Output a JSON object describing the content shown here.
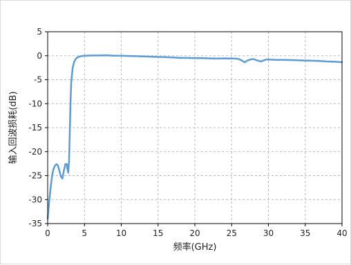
{
  "chart_data": {
    "type": "line",
    "title": "",
    "xlabel": "频率(GHz)",
    "ylabel": "输入回波损耗(dB)",
    "xlim": [
      0,
      40
    ],
    "ylim": [
      -35,
      5
    ],
    "xticks": [
      0,
      5,
      10,
      15,
      20,
      25,
      30,
      35,
      40
    ],
    "yticks": [
      5,
      0,
      -5,
      -10,
      -15,
      -20,
      -25,
      -30,
      -35
    ],
    "grid": true,
    "legend": "none",
    "colors": {
      "line": "#5b9bd5",
      "grid": "#b8b8b8",
      "axis": "#000000"
    },
    "series": [
      {
        "x": [
          0,
          0.2,
          0.4,
          0.6,
          0.8,
          1.0,
          1.2,
          1.4,
          1.6,
          1.8,
          2.0,
          2.2,
          2.4,
          2.6,
          2.7,
          2.8,
          2.9,
          3.0,
          3.1,
          3.2,
          3.4,
          3.6,
          3.8,
          4.0,
          4.2,
          4.5,
          5.0,
          6,
          7,
          8,
          9,
          10,
          11,
          12,
          13,
          14,
          15,
          16,
          17,
          18,
          19,
          20,
          21,
          22,
          23,
          24,
          25,
          25.5,
          26,
          26.5,
          26.8,
          27,
          27.5,
          28,
          28.5,
          29,
          29.3,
          29.7,
          30,
          31,
          32,
          33,
          34,
          35,
          36,
          37,
          38,
          39,
          40
        ],
        "y": [
          -34,
          -30.5,
          -27.5,
          -25,
          -23.6,
          -22.9,
          -22.6,
          -22.9,
          -24,
          -25.2,
          -25.6,
          -24,
          -22.6,
          -22.6,
          -23.8,
          -24.4,
          -22,
          -16,
          -10,
          -5.5,
          -2.5,
          -1.3,
          -0.7,
          -0.4,
          -0.25,
          -0.1,
          0,
          0.05,
          0.05,
          0.1,
          0,
          0,
          -0.05,
          -0.1,
          -0.15,
          -0.2,
          -0.25,
          -0.3,
          -0.35,
          -0.45,
          -0.45,
          -0.5,
          -0.5,
          -0.55,
          -0.6,
          -0.55,
          -0.6,
          -0.6,
          -0.7,
          -1.1,
          -1.4,
          -1.1,
          -0.8,
          -0.7,
          -1.0,
          -1.2,
          -1.0,
          -0.8,
          -0.8,
          -0.85,
          -0.85,
          -0.9,
          -0.95,
          -1.0,
          -1.05,
          -1.1,
          -1.2,
          -1.25,
          -1.35
        ]
      }
    ]
  }
}
